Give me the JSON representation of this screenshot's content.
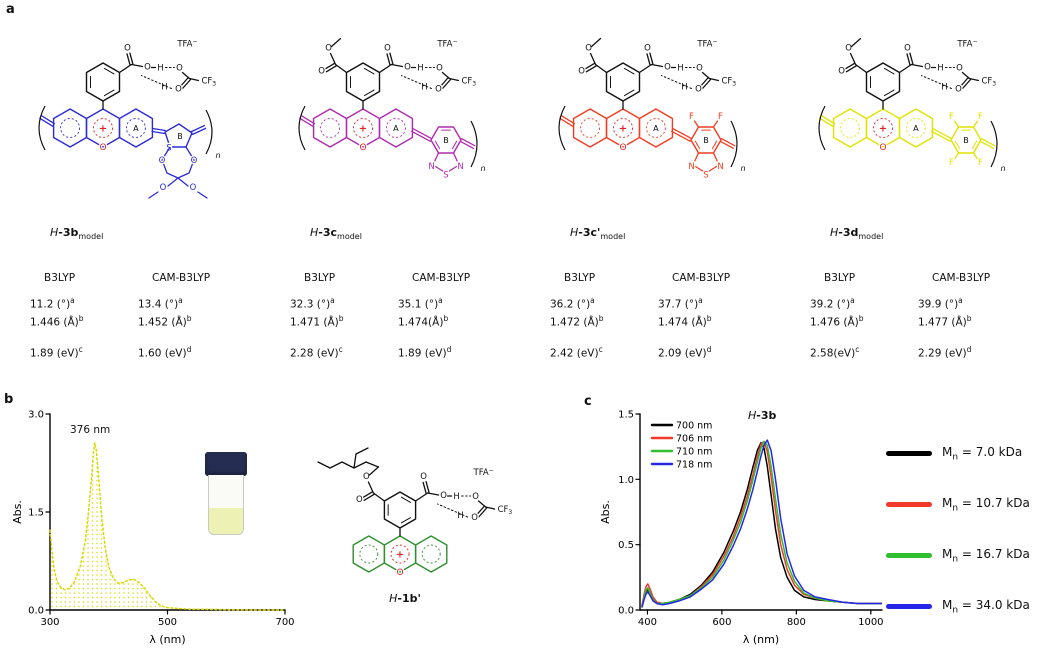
{
  "atoms": {
    "O": "O",
    "H": "H",
    "N": "N",
    "S": "S",
    "F": "F",
    "plus": "+",
    "ringA": "A",
    "ringB": "B",
    "n": "n",
    "CF": "CF",
    "three": "3",
    "TFA": "TFA",
    "minus": "−"
  },
  "panel_a": {
    "label": "a",
    "groups": [
      {
        "name_italic": "H",
        "name_bold": "-3b",
        "name_sub": "model",
        "color": "#2b2bd8",
        "variant": "thiophene",
        "ester": false,
        "thiadiazole": false,
        "fluorines": 0,
        "table": {
          "col1_header": "B3LYP",
          "col2_header": "CAM-B3LYP",
          "col1_rows": [
            [
              "11.2 (°)",
              "a"
            ],
            [
              "1.446 (Å)",
              "b"
            ],
            [
              "1.89 (eV)",
              "c"
            ]
          ],
          "col2_rows": [
            [
              "13.4 (°)",
              "a"
            ],
            [
              "1.452 (Å)",
              "b"
            ],
            [
              "1.60 (eV)",
              "d"
            ]
          ]
        }
      },
      {
        "name_italic": "H",
        "name_bold": "-3c",
        "name_sub": "model",
        "color": "#b02ab0",
        "variant": "hex",
        "ester": true,
        "thiadiazole": true,
        "fluorines": 0,
        "table": {
          "col1_header": "B3LYP",
          "col2_header": "CAM-B3LYP",
          "col1_rows": [
            [
              "32.3 (°)",
              "a"
            ],
            [
              "1.471 (Å)",
              "b"
            ],
            [
              "2.28 (eV)",
              "c"
            ]
          ],
          "col2_rows": [
            [
              "35.1 (°)",
              "a"
            ],
            [
              "1.474(Å)",
              "b"
            ],
            [
              "1.89 (eV)",
              "d"
            ]
          ]
        }
      },
      {
        "name_italic": "H",
        "name_bold": "-3c'",
        "name_sub": "model",
        "color": "#f23c20",
        "variant": "hex",
        "ester": true,
        "thiadiazole": true,
        "fluorines": 2,
        "table": {
          "col1_header": "B3LYP",
          "col2_header": "CAM-B3LYP",
          "col1_rows": [
            [
              "36.2 (°)",
              "a"
            ],
            [
              "1.472 (Å)",
              "b"
            ],
            [
              "2.42 (eV)",
              "c"
            ]
          ],
          "col2_rows": [
            [
              "37.7 (°)",
              "a"
            ],
            [
              "1.474 (Å)",
              "b"
            ],
            [
              "2.09 (eV)",
              "d"
            ]
          ]
        }
      },
      {
        "name_italic": "H",
        "name_bold": "-3d",
        "name_sub": "model",
        "color": "#e2e200",
        "variant": "hex",
        "ester": true,
        "thiadiazole": false,
        "fluorines": 4,
        "table": {
          "col1_header": "B3LYP",
          "col2_header": "CAM-B3LYP",
          "col1_rows": [
            [
              "39.2 (°)",
              "a"
            ],
            [
              "1.476 (Å)",
              "b"
            ],
            [
              "2.58(eV)",
              "c"
            ]
          ],
          "col2_rows": [
            [
              "39.9 (°)",
              "a"
            ],
            [
              "1.477 (Å)",
              "b"
            ],
            [
              "2.29 (eV)",
              "d"
            ]
          ]
        }
      }
    ]
  },
  "panel_b": {
    "label": "b",
    "annotation": "376 nm",
    "structure": {
      "color": "#2f8f2f",
      "caption_italic": "H",
      "caption_bold": "-1b'"
    },
    "chart_data": {
      "type": "line",
      "xlabel": "λ (nm)",
      "ylabel": "Abs.",
      "xlim": [
        300,
        700
      ],
      "ylim": [
        0,
        3
      ],
      "xticks": [
        300,
        500,
        700
      ],
      "xtick_labels": [
        "300",
        "500",
        "700"
      ],
      "yticks": [
        0,
        1.5,
        3
      ],
      "ytick_labels": [
        "0.0",
        "1.5",
        "3.0"
      ],
      "series": [
        {
          "name": "H-1b' absorption",
          "color": "#d8d800",
          "style": "dotted",
          "fill": true,
          "x": [
            300,
            303,
            307,
            312,
            318,
            325,
            333,
            342,
            352,
            360,
            366,
            371,
            374,
            376,
            379,
            383,
            388,
            394,
            400,
            408,
            416,
            425,
            434,
            443,
            452,
            461,
            470,
            479,
            488,
            497,
            508,
            522,
            540,
            565,
            600,
            650,
            700
          ],
          "y": [
            1.22,
            0.92,
            0.62,
            0.44,
            0.35,
            0.31,
            0.33,
            0.44,
            0.68,
            1.05,
            1.55,
            2.05,
            2.42,
            2.56,
            2.44,
            2.0,
            1.42,
            0.95,
            0.66,
            0.48,
            0.41,
            0.42,
            0.46,
            0.47,
            0.42,
            0.33,
            0.22,
            0.13,
            0.07,
            0.04,
            0.03,
            0.02,
            0.01,
            0.01,
            0.005,
            0.0,
            0.0
          ]
        }
      ]
    }
  },
  "panel_c": {
    "label": "c",
    "title_italic": "H",
    "title_bold": "-3b",
    "legend": {
      "items": [
        {
          "color": "#000000",
          "m": "M",
          "sub": "n",
          "value": "= 7.0 kDa"
        },
        {
          "color": "#f23a2a",
          "m": "M",
          "sub": "n",
          "value": "= 10.7 kDa"
        },
        {
          "color": "#2fbf2f",
          "m": "M",
          "sub": "n",
          "value": "= 16.7 kDa"
        },
        {
          "color": "#2626e8",
          "m": "M",
          "sub": "n",
          "value": "= 34.0 kDa"
        }
      ]
    },
    "chart_data": {
      "type": "line",
      "xlabel": "λ (nm)",
      "ylabel": "Abs.",
      "xlim": [
        380,
        1030
      ],
      "ylim": [
        0,
        1.5
      ],
      "xticks": [
        400,
        600,
        800,
        1000
      ],
      "xtick_labels": [
        "400",
        "600",
        "800",
        "1000"
      ],
      "yticks": [
        0,
        0.5,
        1,
        1.5
      ],
      "ytick_labels": [
        "0.0",
        "0.5",
        "1.0",
        "1.5"
      ],
      "series": [
        {
          "name": "700 nm",
          "color": "#000000",
          "x": [
            385,
            391,
            396,
            401,
            407,
            415,
            425,
            440,
            460,
            485,
            515,
            545,
            575,
            605,
            630,
            650,
            668,
            683,
            695,
            705,
            713,
            722,
            732,
            744,
            758,
            775,
            795,
            820,
            850,
            885,
            925,
            965,
            1005,
            1030
          ],
          "y": [
            0.02,
            0.09,
            0.14,
            0.16,
            0.13,
            0.09,
            0.06,
            0.05,
            0.06,
            0.08,
            0.12,
            0.19,
            0.29,
            0.44,
            0.6,
            0.75,
            0.92,
            1.09,
            1.22,
            1.28,
            1.24,
            1.1,
            0.88,
            0.62,
            0.4,
            0.25,
            0.15,
            0.1,
            0.08,
            0.07,
            0.06,
            0.05,
            0.05,
            0.05
          ]
        },
        {
          "name": "706 nm",
          "color": "#f23a2a",
          "x": [
            385,
            391,
            396,
            401,
            407,
            415,
            425,
            440,
            460,
            485,
            515,
            545,
            575,
            605,
            630,
            650,
            668,
            683,
            695,
            705,
            713,
            722,
            732,
            744,
            758,
            775,
            795,
            820,
            850,
            885,
            925,
            965,
            1005,
            1030
          ],
          "y": [
            0.03,
            0.12,
            0.18,
            0.2,
            0.16,
            0.1,
            0.06,
            0.05,
            0.06,
            0.08,
            0.11,
            0.18,
            0.27,
            0.41,
            0.56,
            0.71,
            0.87,
            1.03,
            1.17,
            1.27,
            1.29,
            1.21,
            1.02,
            0.76,
            0.5,
            0.31,
            0.19,
            0.12,
            0.09,
            0.07,
            0.06,
            0.05,
            0.05,
            0.05
          ]
        },
        {
          "name": "710 nm",
          "color": "#2fbf2f",
          "x": [
            385,
            391,
            396,
            401,
            407,
            415,
            425,
            440,
            460,
            485,
            515,
            545,
            575,
            605,
            630,
            650,
            668,
            683,
            695,
            705,
            713,
            722,
            732,
            744,
            758,
            775,
            795,
            820,
            850,
            885,
            925,
            965,
            1005,
            1030
          ],
          "y": [
            0.02,
            0.1,
            0.15,
            0.17,
            0.13,
            0.08,
            0.05,
            0.05,
            0.06,
            0.08,
            0.11,
            0.17,
            0.25,
            0.38,
            0.53,
            0.67,
            0.83,
            0.99,
            1.13,
            1.24,
            1.29,
            1.26,
            1.1,
            0.85,
            0.58,
            0.36,
            0.22,
            0.13,
            0.09,
            0.07,
            0.06,
            0.05,
            0.05,
            0.05
          ]
        },
        {
          "name": "718 nm",
          "color": "#2626e8",
          "x": [
            385,
            391,
            396,
            401,
            407,
            415,
            425,
            440,
            460,
            485,
            515,
            545,
            575,
            605,
            630,
            650,
            668,
            683,
            695,
            705,
            713,
            722,
            732,
            744,
            758,
            775,
            795,
            820,
            850,
            885,
            925,
            965,
            1005,
            1030
          ],
          "y": [
            0.02,
            0.08,
            0.12,
            0.14,
            0.11,
            0.07,
            0.05,
            0.04,
            0.05,
            0.07,
            0.1,
            0.16,
            0.23,
            0.35,
            0.49,
            0.62,
            0.77,
            0.92,
            1.06,
            1.18,
            1.26,
            1.3,
            1.22,
            1.0,
            0.7,
            0.43,
            0.26,
            0.15,
            0.1,
            0.08,
            0.06,
            0.05,
            0.05,
            0.05
          ]
        }
      ]
    }
  }
}
